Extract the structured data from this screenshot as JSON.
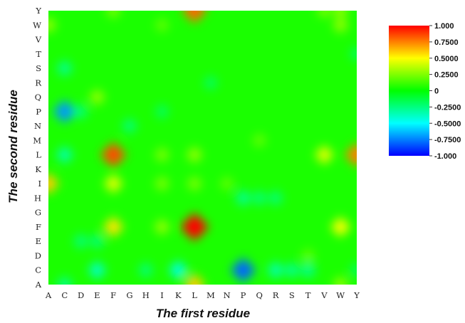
{
  "chart_data": {
    "type": "heatmap",
    "title": "",
    "xlabel": "The first residue",
    "ylabel": "The second residue",
    "x_categories": [
      "A",
      "C",
      "D",
      "E",
      "F",
      "G",
      "H",
      "I",
      "K",
      "L",
      "M",
      "N",
      "P",
      "Q",
      "R",
      "S",
      "T",
      "V",
      "W",
      "Y"
    ],
    "y_categories": [
      "A",
      "C",
      "D",
      "E",
      "F",
      "G",
      "H",
      "I",
      "K",
      "L",
      "M",
      "N",
      "P",
      "Q",
      "R",
      "S",
      "T",
      "V",
      "W",
      "Y"
    ],
    "colorbar": {
      "min": -1,
      "max": 1,
      "ticks": [
        "1.000",
        "0.7500",
        "0.5000",
        "0.2500",
        "0",
        "-0.2500",
        "-0.5000",
        "-0.7500",
        "-1.000"
      ],
      "colors": [
        "#0000ff",
        "#00ffff",
        "#00ff00",
        "#ffff00",
        "#ff0000"
      ]
    },
    "background_value": 0.05,
    "notable_cells": [
      {
        "x": "L",
        "y": "F",
        "value": 1.0
      },
      {
        "x": "L",
        "y": "Y",
        "value": 0.8
      },
      {
        "x": "F",
        "y": "L",
        "value": 0.85
      },
      {
        "x": "Y",
        "y": "L",
        "value": 0.75
      },
      {
        "x": "A",
        "y": "I",
        "value": 0.6
      },
      {
        "x": "F",
        "y": "I",
        "value": 0.45
      },
      {
        "x": "F",
        "y": "F",
        "value": 0.55
      },
      {
        "x": "V",
        "y": "L",
        "value": 0.45
      },
      {
        "x": "W",
        "y": "F",
        "value": 0.5
      },
      {
        "x": "L",
        "y": "A",
        "value": 0.6
      },
      {
        "x": "L",
        "y": "L",
        "value": 0.3
      },
      {
        "x": "I",
        "y": "L",
        "value": 0.25
      },
      {
        "x": "I",
        "y": "F",
        "value": 0.3
      },
      {
        "x": "I",
        "y": "I",
        "value": 0.25
      },
      {
        "x": "L",
        "y": "I",
        "value": 0.25
      },
      {
        "x": "W",
        "y": "Y",
        "value": 0.3
      },
      {
        "x": "V",
        "y": "Y",
        "value": 0.25
      },
      {
        "x": "W",
        "y": "W",
        "value": 0.3
      },
      {
        "x": "F",
        "y": "Y",
        "value": 0.25
      },
      {
        "x": "I",
        "y": "W",
        "value": 0.2
      },
      {
        "x": "E",
        "y": "Q",
        "value": 0.3
      },
      {
        "x": "A",
        "y": "W",
        "value": 0.3
      },
      {
        "x": "W",
        "y": "A",
        "value": 0.3
      },
      {
        "x": "N",
        "y": "I",
        "value": 0.2
      },
      {
        "x": "Q",
        "y": "M",
        "value": 0.2
      },
      {
        "x": "T",
        "y": "D",
        "value": 0.2
      },
      {
        "x": "C",
        "y": "P",
        "value": -0.7
      },
      {
        "x": "P",
        "y": "C",
        "value": -0.8
      },
      {
        "x": "K",
        "y": "C",
        "value": -0.45
      },
      {
        "x": "E",
        "y": "C",
        "value": -0.4
      },
      {
        "x": "C",
        "y": "L",
        "value": -0.35
      },
      {
        "x": "C",
        "y": "S",
        "value": -0.3
      },
      {
        "x": "R",
        "y": "C",
        "value": -0.35
      },
      {
        "x": "S",
        "y": "C",
        "value": -0.3
      },
      {
        "x": "T",
        "y": "C",
        "value": -0.3
      },
      {
        "x": "H",
        "y": "C",
        "value": -0.25
      },
      {
        "x": "C",
        "y": "A",
        "value": -0.3
      },
      {
        "x": "Y",
        "y": "C",
        "value": -0.2
      },
      {
        "x": "P",
        "y": "H",
        "value": -0.3
      },
      {
        "x": "Q",
        "y": "H",
        "value": -0.25
      },
      {
        "x": "R",
        "y": "H",
        "value": -0.25
      },
      {
        "x": "D",
        "y": "P",
        "value": -0.25
      },
      {
        "x": "G",
        "y": "N",
        "value": -0.25
      },
      {
        "x": "I",
        "y": "P",
        "value": -0.2
      },
      {
        "x": "M",
        "y": "R",
        "value": -0.2
      },
      {
        "x": "D",
        "y": "E",
        "value": -0.25
      },
      {
        "x": "E",
        "y": "E",
        "value": -0.25
      },
      {
        "x": "Y",
        "y": "T",
        "value": -0.2
      }
    ]
  }
}
